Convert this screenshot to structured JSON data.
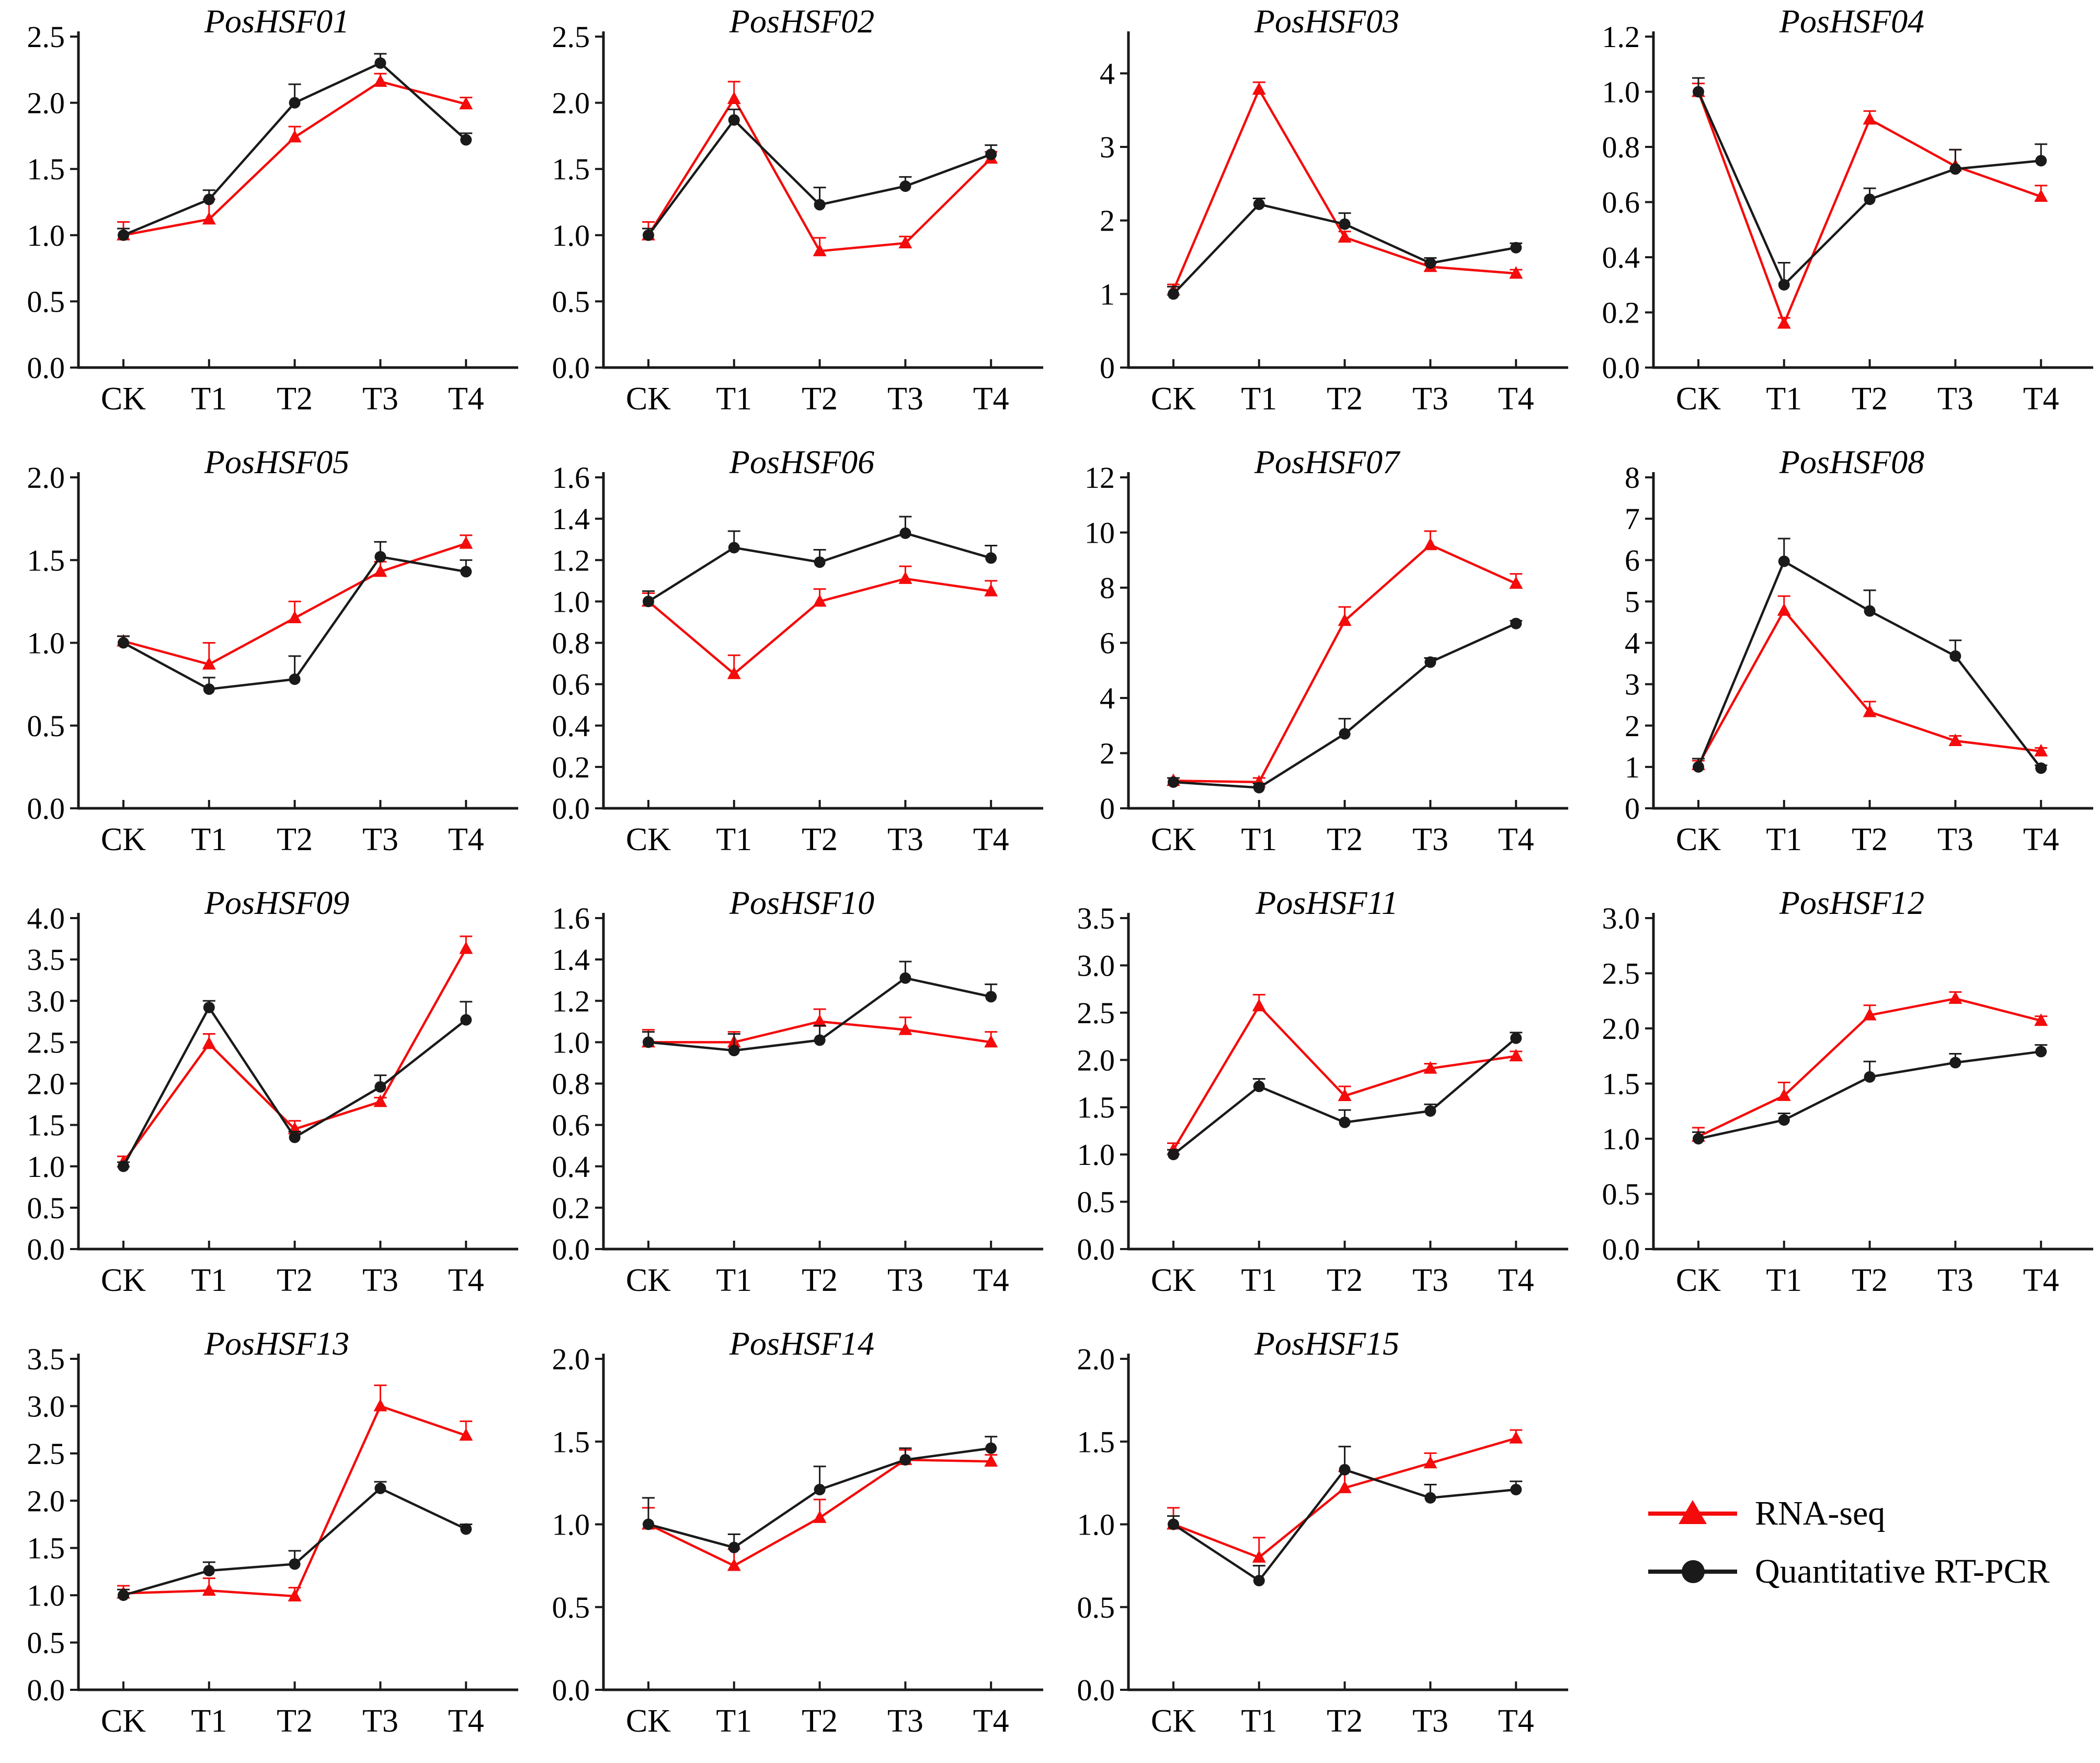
{
  "legend": {
    "items": [
      {
        "label": "RNA-seq",
        "color": "#f40b0b",
        "marker": "triangle"
      },
      {
        "label": "Quantitative RT-PCR",
        "color": "#1a1a1a",
        "marker": "circle"
      }
    ]
  },
  "x_categories": [
    "CK",
    "T1",
    "T2",
    "T3",
    "T4"
  ],
  "chart_data": [
    {
      "type": "line",
      "title": "PosHSF01",
      "categories": [
        "CK",
        "T1",
        "T2",
        "T3",
        "T4"
      ],
      "ymax": 2.5,
      "yticks": [
        0.0,
        0.5,
        1.0,
        1.5,
        2.0,
        2.5
      ],
      "ytick_decimals": 1,
      "series": [
        {
          "name": "RNA-seq",
          "marker": "triangle",
          "values": [
            1.0,
            1.12,
            1.74,
            2.16,
            1.99
          ],
          "errors": [
            0.1,
            0.15,
            0.08,
            0.06,
            0.05
          ]
        },
        {
          "name": "Quantitative RT-PCR",
          "marker": "circle",
          "values": [
            1.0,
            1.27,
            2.0,
            2.3,
            1.72
          ],
          "errors": [
            0.05,
            0.07,
            0.14,
            0.07,
            0.05
          ]
        }
      ]
    },
    {
      "type": "line",
      "title": "PosHSF02",
      "categories": [
        "CK",
        "T1",
        "T2",
        "T3",
        "T4"
      ],
      "ymax": 2.5,
      "yticks": [
        0.0,
        0.5,
        1.0,
        1.5,
        2.0,
        2.5
      ],
      "ytick_decimals": 1,
      "series": [
        {
          "name": "RNA-seq",
          "marker": "triangle",
          "values": [
            1.0,
            2.03,
            0.88,
            0.94,
            1.58
          ],
          "errors": [
            0.1,
            0.13,
            0.1,
            0.05,
            0.05
          ]
        },
        {
          "name": "Quantitative RT-PCR",
          "marker": "circle",
          "values": [
            1.0,
            1.87,
            1.23,
            1.37,
            1.61
          ],
          "errors": [
            0.05,
            0.08,
            0.13,
            0.07,
            0.07
          ]
        }
      ]
    },
    {
      "type": "line",
      "title": "PosHSF03",
      "categories": [
        "CK",
        "T1",
        "T2",
        "T3",
        "T4"
      ],
      "ymax": 4.5,
      "yticks": [
        0,
        1,
        2,
        3,
        4
      ],
      "ytick_decimals": 0,
      "series": [
        {
          "name": "RNA-seq",
          "marker": "triangle",
          "values": [
            1.05,
            3.78,
            1.77,
            1.37,
            1.28
          ],
          "errors": [
            0.08,
            0.1,
            0.08,
            0.05,
            0.05
          ]
        },
        {
          "name": "Quantitative RT-PCR",
          "marker": "circle",
          "values": [
            1.0,
            2.22,
            1.95,
            1.42,
            1.63
          ],
          "errors": [
            0.1,
            0.08,
            0.15,
            0.07,
            0.06
          ]
        }
      ]
    },
    {
      "type": "line",
      "title": "PosHSF04",
      "categories": [
        "CK",
        "T1",
        "T2",
        "T3",
        "T4"
      ],
      "ymax": 1.2,
      "yticks": [
        0.0,
        0.2,
        0.4,
        0.6,
        0.8,
        1.0,
        1.2
      ],
      "ytick_decimals": 1,
      "series": [
        {
          "name": "RNA-seq",
          "marker": "triangle",
          "values": [
            1.0,
            0.16,
            0.9,
            0.73,
            0.62
          ],
          "errors": [
            0.03,
            0.02,
            0.03,
            0.06,
            0.04
          ]
        },
        {
          "name": "Quantitative RT-PCR",
          "marker": "circle",
          "values": [
            1.0,
            0.3,
            0.61,
            0.72,
            0.75
          ],
          "errors": [
            0.05,
            0.08,
            0.04,
            0.07,
            0.06
          ]
        }
      ]
    },
    {
      "type": "line",
      "title": "PosHSF05",
      "categories": [
        "CK",
        "T1",
        "T2",
        "T3",
        "T4"
      ],
      "ymax": 2.0,
      "yticks": [
        0.0,
        0.5,
        1.0,
        1.5,
        2.0
      ],
      "ytick_decimals": 1,
      "series": [
        {
          "name": "RNA-seq",
          "marker": "triangle",
          "values": [
            1.01,
            0.87,
            1.15,
            1.43,
            1.6
          ],
          "errors": [
            0.03,
            0.13,
            0.1,
            0.06,
            0.05
          ]
        },
        {
          "name": "Quantitative RT-PCR",
          "marker": "circle",
          "values": [
            1.0,
            0.72,
            0.78,
            1.52,
            1.43
          ],
          "errors": [
            0.04,
            0.07,
            0.14,
            0.09,
            0.07
          ]
        }
      ]
    },
    {
      "type": "line",
      "title": "PosHSF06",
      "categories": [
        "CK",
        "T1",
        "T2",
        "T3",
        "T4"
      ],
      "ymax": 1.6,
      "yticks": [
        0.0,
        0.2,
        0.4,
        0.6,
        0.8,
        1.0,
        1.2,
        1.4,
        1.6
      ],
      "ytick_decimals": 1,
      "series": [
        {
          "name": "RNA-seq",
          "marker": "triangle",
          "values": [
            1.0,
            0.65,
            1.0,
            1.11,
            1.05
          ],
          "errors": [
            0.04,
            0.09,
            0.06,
            0.06,
            0.05
          ]
        },
        {
          "name": "Quantitative RT-PCR",
          "marker": "circle",
          "values": [
            1.0,
            1.26,
            1.19,
            1.33,
            1.21
          ],
          "errors": [
            0.05,
            0.08,
            0.06,
            0.08,
            0.06
          ]
        }
      ]
    },
    {
      "type": "line",
      "title": "PosHSF07",
      "categories": [
        "CK",
        "T1",
        "T2",
        "T3",
        "T4"
      ],
      "ymax": 12,
      "yticks": [
        0,
        2,
        4,
        6,
        8,
        10,
        12
      ],
      "ytick_decimals": 0,
      "series": [
        {
          "name": "RNA-seq",
          "marker": "triangle",
          "values": [
            1.0,
            0.95,
            6.8,
            9.55,
            8.15
          ],
          "errors": [
            0.1,
            0.15,
            0.5,
            0.5,
            0.35
          ]
        },
        {
          "name": "Quantitative RT-PCR",
          "marker": "circle",
          "values": [
            0.95,
            0.75,
            2.7,
            5.3,
            6.7
          ],
          "errors": [
            0.15,
            0.15,
            0.55,
            0.15,
            0.1
          ]
        }
      ]
    },
    {
      "type": "line",
      "title": "PosHSF08",
      "categories": [
        "CK",
        "T1",
        "T2",
        "T3",
        "T4"
      ],
      "ymax": 8,
      "yticks": [
        0,
        1,
        2,
        3,
        4,
        5,
        6,
        7,
        8
      ],
      "ytick_decimals": 0,
      "series": [
        {
          "name": "RNA-seq",
          "marker": "triangle",
          "values": [
            1.05,
            4.78,
            2.33,
            1.63,
            1.38
          ],
          "errors": [
            0.1,
            0.35,
            0.25,
            0.12,
            0.08
          ]
        },
        {
          "name": "Quantitative RT-PCR",
          "marker": "circle",
          "values": [
            1.0,
            5.97,
            4.77,
            3.68,
            0.97
          ],
          "errors": [
            0.2,
            0.55,
            0.5,
            0.38,
            0.07
          ]
        }
      ]
    },
    {
      "type": "line",
      "title": "PosHSF09",
      "categories": [
        "CK",
        "T1",
        "T2",
        "T3",
        "T4"
      ],
      "ymax": 4.0,
      "yticks": [
        0.0,
        0.5,
        1.0,
        1.5,
        2.0,
        2.5,
        3.0,
        3.5,
        4.0
      ],
      "ytick_decimals": 1,
      "series": [
        {
          "name": "RNA-seq",
          "marker": "triangle",
          "values": [
            1.05,
            2.48,
            1.45,
            1.78,
            3.63
          ],
          "errors": [
            0.07,
            0.12,
            0.1,
            0.05,
            0.15
          ]
        },
        {
          "name": "Quantitative RT-PCR",
          "marker": "circle",
          "values": [
            1.0,
            2.92,
            1.35,
            1.96,
            2.77
          ],
          "errors": [
            0.05,
            0.08,
            0.07,
            0.14,
            0.22
          ]
        }
      ]
    },
    {
      "type": "line",
      "title": "PosHSF10",
      "categories": [
        "CK",
        "T1",
        "T2",
        "T3",
        "T4"
      ],
      "ymax": 1.6,
      "yticks": [
        0.0,
        0.2,
        0.4,
        0.6,
        0.8,
        1.0,
        1.2,
        1.4,
        1.6
      ],
      "ytick_decimals": 1,
      "series": [
        {
          "name": "RNA-seq",
          "marker": "triangle",
          "values": [
            1.0,
            1.0,
            1.1,
            1.06,
            1.0
          ],
          "errors": [
            0.06,
            0.05,
            0.06,
            0.06,
            0.05
          ]
        },
        {
          "name": "Quantitative RT-PCR",
          "marker": "circle",
          "values": [
            1.0,
            0.96,
            1.01,
            1.31,
            1.22
          ],
          "errors": [
            0.05,
            0.08,
            0.07,
            0.08,
            0.06
          ]
        }
      ]
    },
    {
      "type": "line",
      "title": "PosHSF11",
      "categories": [
        "CK",
        "T1",
        "T2",
        "T3",
        "T4"
      ],
      "ymax": 3.5,
      "yticks": [
        0.0,
        0.5,
        1.0,
        1.5,
        2.0,
        2.5,
        3.0,
        3.5
      ],
      "ytick_decimals": 1,
      "series": [
        {
          "name": "RNA-seq",
          "marker": "triangle",
          "values": [
            1.05,
            2.57,
            1.62,
            1.91,
            2.04
          ],
          "errors": [
            0.07,
            0.12,
            0.1,
            0.05,
            0.05
          ]
        },
        {
          "name": "Quantitative RT-PCR",
          "marker": "circle",
          "values": [
            1.0,
            1.72,
            1.34,
            1.46,
            2.23
          ],
          "errors": [
            0.05,
            0.08,
            0.13,
            0.07,
            0.06
          ]
        }
      ]
    },
    {
      "type": "line",
      "title": "PosHSF12",
      "categories": [
        "CK",
        "T1",
        "T2",
        "T3",
        "T4"
      ],
      "ymax": 3.0,
      "yticks": [
        0.0,
        0.5,
        1.0,
        1.5,
        2.0,
        2.5,
        3.0
      ],
      "ytick_decimals": 1,
      "series": [
        {
          "name": "RNA-seq",
          "marker": "triangle",
          "values": [
            1.02,
            1.39,
            2.12,
            2.27,
            2.07
          ],
          "errors": [
            0.08,
            0.12,
            0.09,
            0.06,
            0.04
          ]
        },
        {
          "name": "Quantitative RT-PCR",
          "marker": "circle",
          "values": [
            1.0,
            1.17,
            1.56,
            1.69,
            1.79
          ],
          "errors": [
            0.06,
            0.06,
            0.14,
            0.08,
            0.06
          ]
        }
      ]
    },
    {
      "type": "line",
      "title": "PosHSF13",
      "categories": [
        "CK",
        "T1",
        "T2",
        "T3",
        "T4"
      ],
      "ymax": 3.5,
      "yticks": [
        0.0,
        0.5,
        1.0,
        1.5,
        2.0,
        2.5,
        3.0,
        3.5
      ],
      "ytick_decimals": 1,
      "series": [
        {
          "name": "RNA-seq",
          "marker": "triangle",
          "values": [
            1.02,
            1.05,
            0.99,
            3.0,
            2.69
          ],
          "errors": [
            0.08,
            0.13,
            0.09,
            0.22,
            0.15
          ]
        },
        {
          "name": "Quantitative RT-PCR",
          "marker": "circle",
          "values": [
            1.0,
            1.26,
            1.33,
            2.13,
            1.7
          ],
          "errors": [
            0.06,
            0.09,
            0.14,
            0.07,
            0.05
          ]
        }
      ]
    },
    {
      "type": "line",
      "title": "PosHSF14",
      "categories": [
        "CK",
        "T1",
        "T2",
        "T3",
        "T4"
      ],
      "ymax": 2.0,
      "yticks": [
        0.0,
        0.5,
        1.0,
        1.5,
        2.0
      ],
      "ytick_decimals": 1,
      "series": [
        {
          "name": "RNA-seq",
          "marker": "triangle",
          "values": [
            1.0,
            0.75,
            1.04,
            1.39,
            1.38
          ],
          "errors": [
            0.1,
            0.1,
            0.11,
            0.06,
            0.04
          ]
        },
        {
          "name": "Quantitative RT-PCR",
          "marker": "circle",
          "values": [
            1.0,
            0.86,
            1.21,
            1.39,
            1.46
          ],
          "errors": [
            0.16,
            0.08,
            0.14,
            0.07,
            0.07
          ]
        }
      ]
    },
    {
      "type": "line",
      "title": "PosHSF15",
      "categories": [
        "CK",
        "T1",
        "T2",
        "T3",
        "T4"
      ],
      "ymax": 2.0,
      "yticks": [
        0.0,
        0.5,
        1.0,
        1.5,
        2.0
      ],
      "ytick_decimals": 1,
      "series": [
        {
          "name": "RNA-seq",
          "marker": "triangle",
          "values": [
            1.0,
            0.8,
            1.22,
            1.37,
            1.52
          ],
          "errors": [
            0.1,
            0.12,
            0.1,
            0.06,
            0.05
          ]
        },
        {
          "name": "Quantitative RT-PCR",
          "marker": "circle",
          "values": [
            1.0,
            0.66,
            1.33,
            1.16,
            1.21
          ],
          "errors": [
            0.05,
            0.09,
            0.14,
            0.08,
            0.05
          ]
        }
      ]
    }
  ]
}
